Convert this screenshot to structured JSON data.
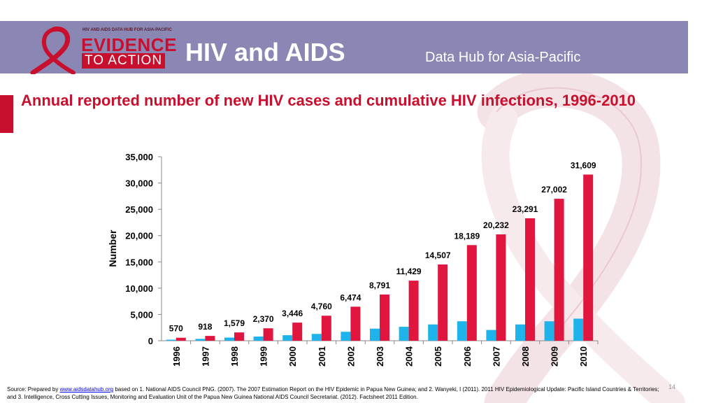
{
  "header": {
    "logo_top": "HIV AND AIDS DATA HUB FOR ASIA-PACIFIC",
    "logo_main": "EVIDENCE",
    "logo_sub": "TO ACTION",
    "title": "HIV and AIDS",
    "subtitle": "Data Hub for Asia-Pacific"
  },
  "slide_title": "Annual reported number of  new HIV cases and cumulative HIV infections, 1996-2010",
  "colors": {
    "new_cases": "#1fb3ec",
    "cumulative": "#e0163f",
    "header": "#8a87b5",
    "title": "#c8102e"
  },
  "chart_data": {
    "type": "bar",
    "title": "",
    "xlabel": "",
    "ylabel": "Number",
    "ylim": [
      0,
      35000
    ],
    "yticks": [
      "0",
      "5,000",
      "10,000",
      "15,000",
      "20,000",
      "25,000",
      "30,000",
      "35,000"
    ],
    "categories": [
      "1996",
      "1997",
      "1998",
      "1999",
      "2000",
      "2001",
      "2002",
      "2003",
      "2004",
      "2005",
      "2006",
      "2007",
      "2008",
      "2009",
      "2010"
    ],
    "series": [
      {
        "values": [
          200,
          350,
          600,
          800,
          1050,
          1300,
          1700,
          2300,
          2650,
          3100,
          3700,
          2050,
          3100,
          3700,
          4200
        ]
      },
      {
        "values": [
          570,
          918,
          1579,
          2370,
          3446,
          4760,
          6474,
          8791,
          11429,
          14507,
          18189,
          20232,
          23291,
          27002,
          31609
        ],
        "labels": [
          "570",
          "918",
          "1,579",
          "2,370",
          "3,446",
          "4,760",
          "6,474",
          "8,791",
          "11,429",
          "14,507",
          "18,189",
          "20,232",
          "23,291",
          "27,002",
          "31,609"
        ]
      }
    ]
  },
  "footer": {
    "source_prefix": "Source: Prepared by ",
    "source_link": "www.aidsdatahub.org",
    "source_rest": "  based on 1. National AIDS Council PNG. (2007). The 2007 Estimation Report on the HIV Epidemic in Papua New Guinea; and 2. Wanyeki, I (2011). 2011 HIV Epidemiological Update: Pacific Island Countries & Territories; and 3. Intelligence, Cross Cutting Issues, Monitoring and Evaluation Unit of the Papua New Guinea National AIDS Council Secretariat. (2012). Factsheet 2011 Edition.",
    "page_number": "14"
  }
}
